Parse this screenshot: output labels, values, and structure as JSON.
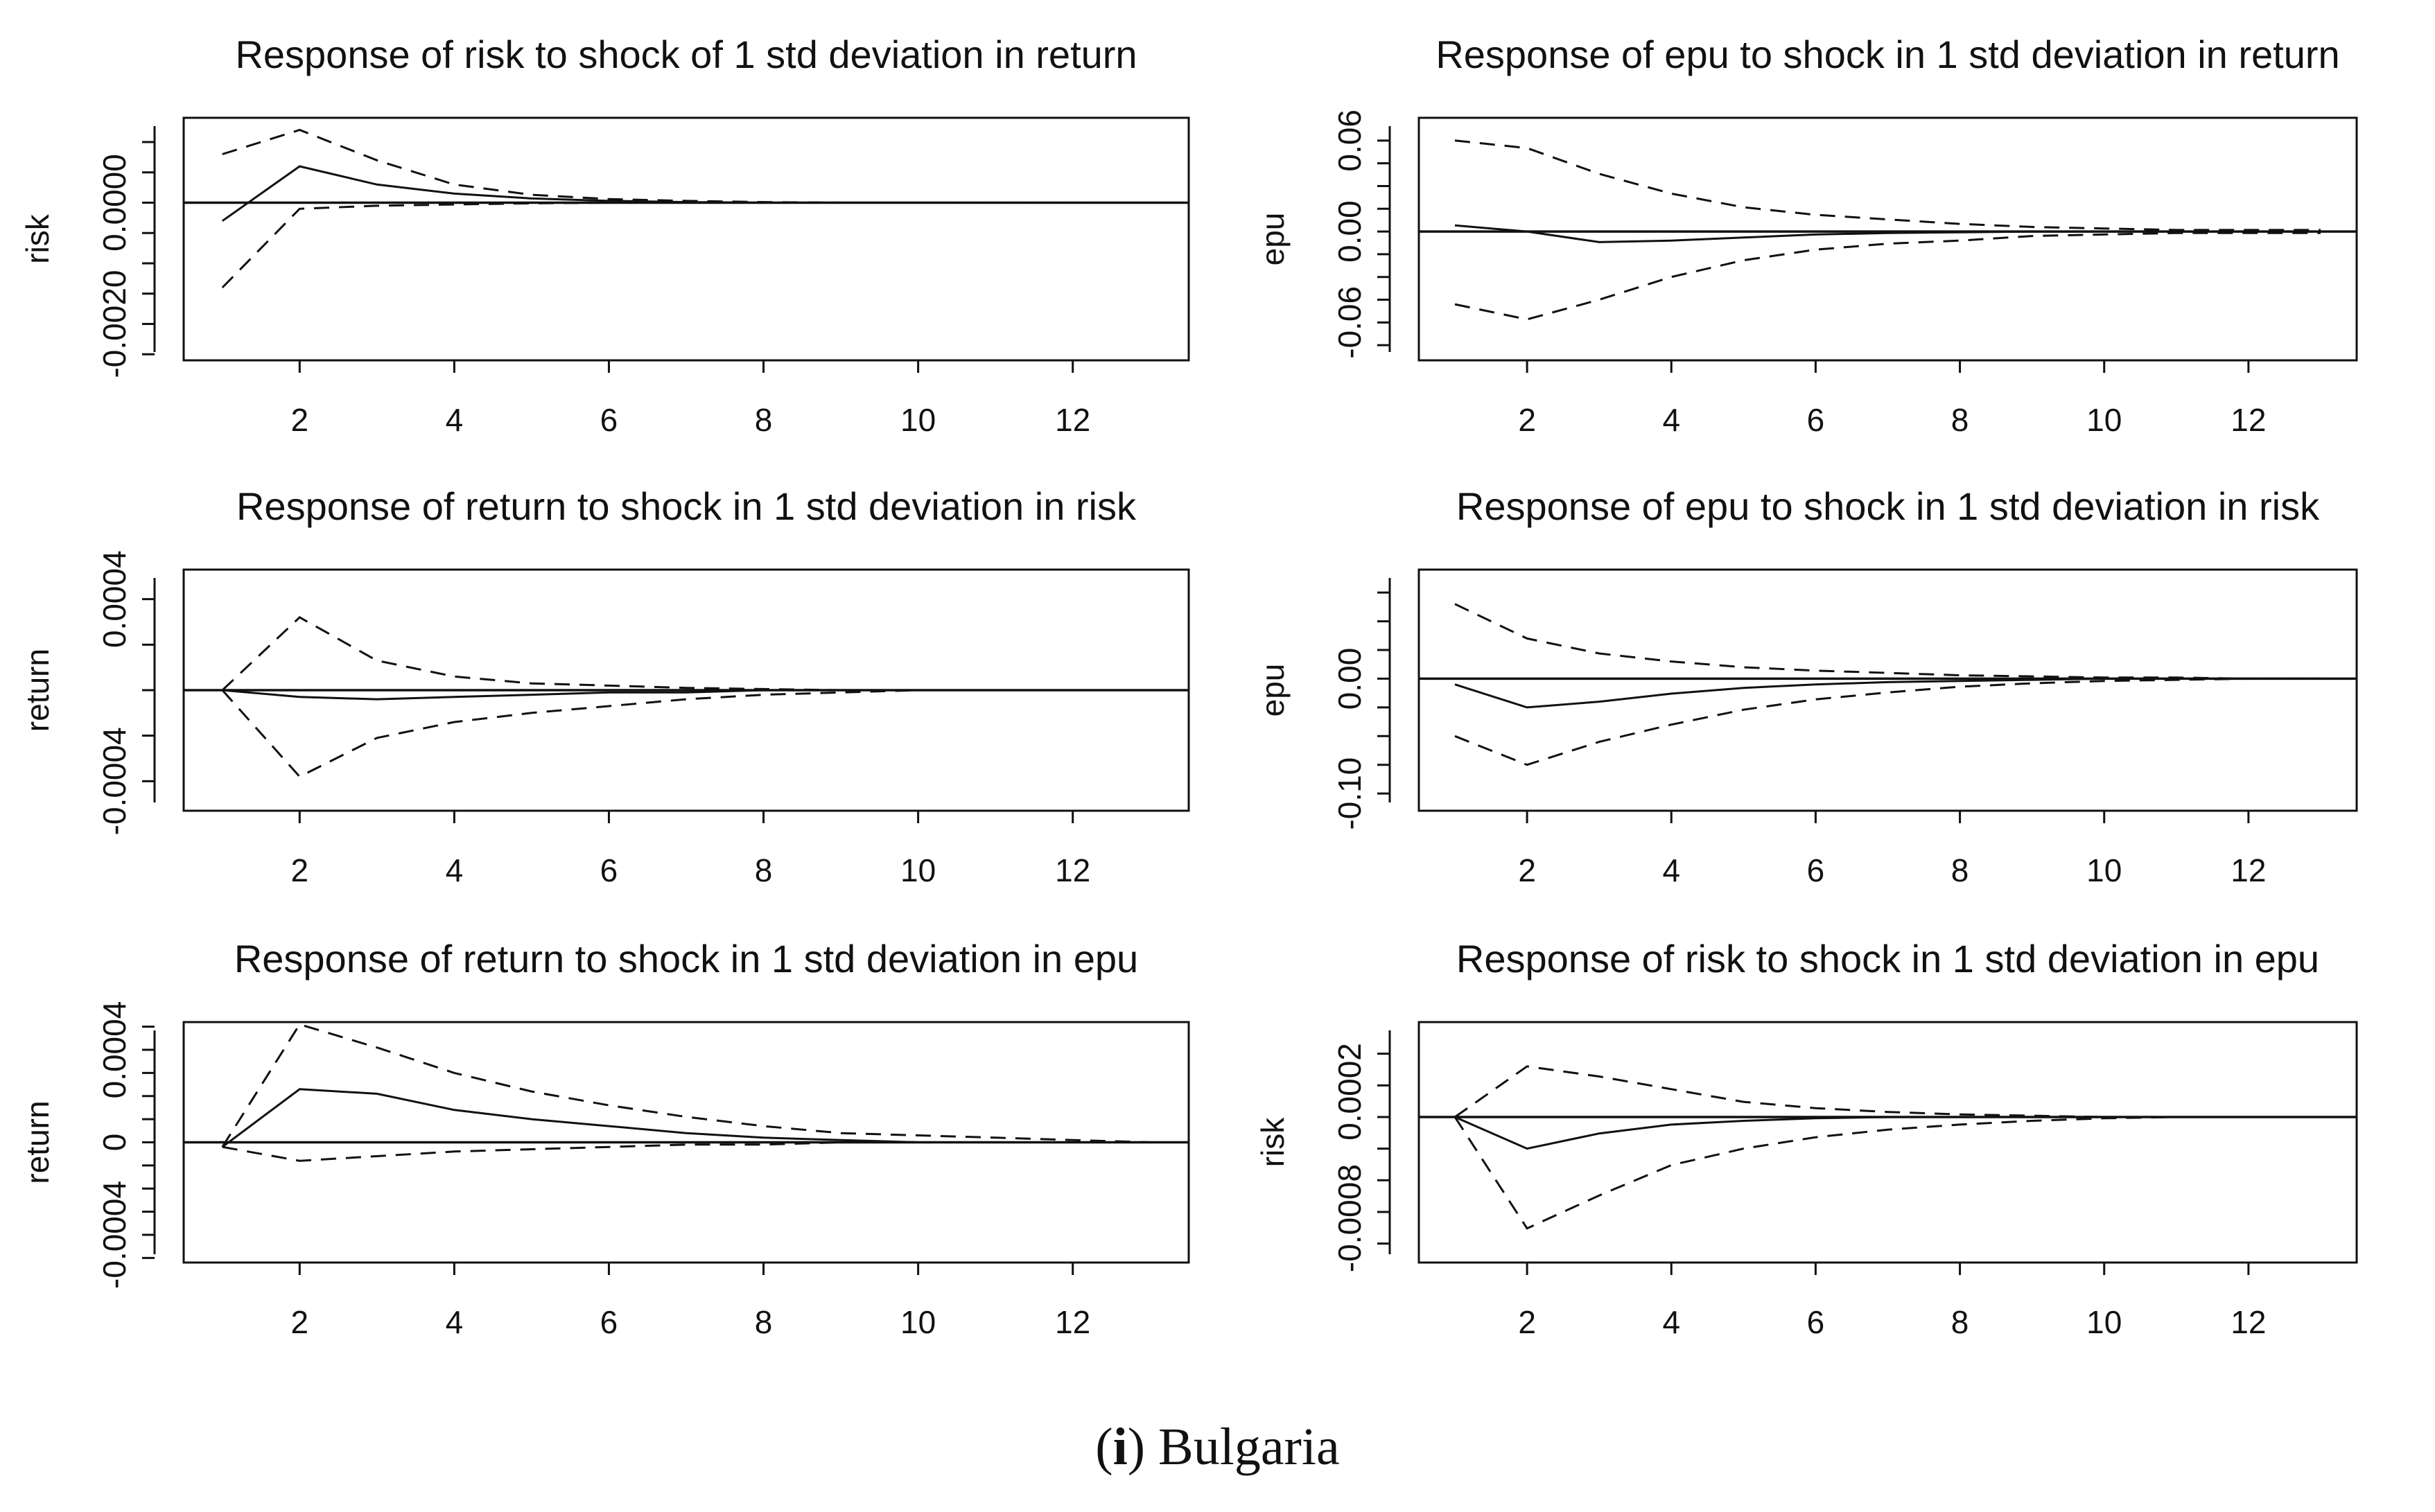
{
  "caption": {
    "label": "i",
    "country": "Bulgaria"
  },
  "chart_data": [
    {
      "type": "line",
      "title": "Response of risk to shock of 1 std deviation in return",
      "ylabel": "risk",
      "xlim": [
        0.5,
        13.5
      ],
      "ylim": [
        -0.0026,
        0.0014
      ],
      "xticks": [
        "2",
        "4",
        "6",
        "8",
        "10",
        "12"
      ],
      "yticks": [
        {
          "v": 0.0,
          "label": "0.0000"
        },
        {
          "v": -0.002,
          "label": "-0.0020"
        }
      ],
      "series": [
        {
          "name": "irf",
          "style": "solid",
          "x": [
            1,
            2,
            3,
            4,
            5,
            6,
            7,
            8,
            9,
            10,
            11,
            12,
            13
          ],
          "values": [
            -0.0003,
            0.0006,
            0.0003,
            0.00015,
            7e-05,
            3e-05,
            1e-05,
            0,
            0,
            0,
            0,
            0,
            0
          ]
        },
        {
          "name": "upper",
          "style": "dashed",
          "x": [
            1,
            2,
            3,
            4,
            5,
            6,
            7,
            8,
            9,
            10,
            11,
            12,
            13
          ],
          "values": [
            0.0008,
            0.0012,
            0.0007,
            0.0003,
            0.00013,
            6e-05,
            3e-05,
            1e-05,
            0,
            0,
            0,
            0,
            0
          ]
        },
        {
          "name": "lower",
          "style": "dashed",
          "x": [
            1,
            2,
            3,
            4,
            5,
            6,
            7,
            8,
            9,
            10,
            11,
            12,
            13
          ],
          "values": [
            -0.0014,
            -0.0001,
            -5e-05,
            -3e-05,
            -1e-05,
            0,
            0,
            0,
            0,
            0,
            0,
            0,
            0
          ]
        }
      ]
    },
    {
      "type": "line",
      "title": "Response of epu to shock in 1 std deviation in return",
      "ylabel": "epu",
      "xlim": [
        0.5,
        13.5
      ],
      "ylim": [
        -0.085,
        0.075
      ],
      "xticks": [
        "2",
        "4",
        "6",
        "8",
        "10",
        "12"
      ],
      "yticks": [
        {
          "v": 0.06,
          "label": "0.06"
        },
        {
          "v": 0.0,
          "label": "0.00"
        },
        {
          "v": -0.06,
          "label": "-0.06"
        }
      ],
      "series": [
        {
          "name": "irf",
          "style": "solid",
          "x": [
            1,
            2,
            3,
            4,
            5,
            6,
            7,
            8,
            9,
            10,
            11,
            12,
            13
          ],
          "values": [
            0.004,
            0.0,
            -0.007,
            -0.006,
            -0.004,
            -0.002,
            -0.001,
            -0.0005,
            0,
            0,
            0,
            0,
            0
          ]
        },
        {
          "name": "upper",
          "style": "dashed",
          "x": [
            1,
            2,
            3,
            4,
            5,
            6,
            7,
            8,
            9,
            10,
            11,
            12,
            13
          ],
          "values": [
            0.06,
            0.055,
            0.038,
            0.025,
            0.016,
            0.011,
            0.008,
            0.005,
            0.003,
            0.002,
            0.001,
            0.001,
            0.001
          ]
        },
        {
          "name": "lower",
          "style": "dashed",
          "x": [
            1,
            2,
            3,
            4,
            5,
            6,
            7,
            8,
            9,
            10,
            11,
            12,
            13
          ],
          "values": [
            -0.048,
            -0.058,
            -0.045,
            -0.03,
            -0.019,
            -0.012,
            -0.008,
            -0.006,
            -0.003,
            -0.002,
            -0.001,
            -0.001,
            -0.001
          ]
        }
      ]
    },
    {
      "type": "line",
      "title": "Response of return to shock in 1 std deviation in risk",
      "ylabel": "return",
      "xlim": [
        0.5,
        13.5
      ],
      "ylim": [
        -0.00053,
        0.00053
      ],
      "xticks": [
        "2",
        "4",
        "6",
        "8",
        "10",
        "12"
      ],
      "yticks": [
        {
          "v": 0.0004,
          "label": "0.0004"
        },
        {
          "v": -0.0004,
          "label": "-0.0004"
        }
      ],
      "series": [
        {
          "name": "irf",
          "style": "solid",
          "x": [
            1,
            2,
            3,
            4,
            5,
            6,
            7,
            8,
            9,
            10,
            11,
            12,
            13
          ],
          "values": [
            0,
            -3e-05,
            -4e-05,
            -3e-05,
            -2e-05,
            -1e-05,
            -1e-05,
            0,
            0,
            0,
            0,
            0,
            0
          ]
        },
        {
          "name": "upper",
          "style": "dashed",
          "x": [
            1,
            2,
            3,
            4,
            5,
            6,
            7,
            8,
            9,
            10,
            11,
            12,
            13
          ],
          "values": [
            0,
            0.00032,
            0.00013,
            6e-05,
            3e-05,
            2e-05,
            1e-05,
            5e-06,
            0,
            0,
            0,
            0,
            0
          ]
        },
        {
          "name": "lower",
          "style": "dashed",
          "x": [
            1,
            2,
            3,
            4,
            5,
            6,
            7,
            8,
            9,
            10,
            11,
            12,
            13
          ],
          "values": [
            0,
            -0.00038,
            -0.00021,
            -0.00014,
            -0.0001,
            -7e-05,
            -4e-05,
            -2e-05,
            -1e-05,
            0,
            0,
            0,
            0
          ]
        }
      ]
    },
    {
      "type": "line",
      "title": "Response of epu to shock in 1 std deviation in risk",
      "ylabel": "epu",
      "xlim": [
        0.5,
        13.5
      ],
      "ylim": [
        -0.115,
        0.095
      ],
      "xticks": [
        "2",
        "4",
        "6",
        "8",
        "10",
        "12"
      ],
      "yticks": [
        {
          "v": 0.0,
          "label": "0.00"
        },
        {
          "v": -0.1,
          "label": "-0.10"
        }
      ],
      "series": [
        {
          "name": "irf",
          "style": "solid",
          "x": [
            1,
            2,
            3,
            4,
            5,
            6,
            7,
            8,
            9,
            10,
            11,
            12,
            13
          ],
          "values": [
            -0.005,
            -0.025,
            -0.02,
            -0.013,
            -0.008,
            -0.005,
            -0.003,
            -0.002,
            -0.001,
            0,
            0,
            0,
            0
          ]
        },
        {
          "name": "upper",
          "style": "dashed",
          "x": [
            1,
            2,
            3,
            4,
            5,
            6,
            7,
            8,
            9,
            10,
            11,
            12,
            13
          ],
          "values": [
            0.065,
            0.035,
            0.022,
            0.015,
            0.01,
            0.007,
            0.005,
            0.003,
            0.002,
            0.001,
            0.001,
            0,
            0
          ]
        },
        {
          "name": "lower",
          "style": "dashed",
          "x": [
            1,
            2,
            3,
            4,
            5,
            6,
            7,
            8,
            9,
            10,
            11,
            12,
            13
          ],
          "values": [
            -0.05,
            -0.075,
            -0.055,
            -0.04,
            -0.027,
            -0.018,
            -0.012,
            -0.007,
            -0.004,
            -0.002,
            -0.001,
            0,
            0
          ]
        }
      ]
    },
    {
      "type": "line",
      "title": "Response of return to shock in 1 std deviation in epu",
      "ylabel": "return",
      "xlim": [
        0.5,
        13.5
      ],
      "ylim": [
        -0.00052,
        0.00052
      ],
      "xticks": [
        "2",
        "4",
        "6",
        "8",
        "10",
        "12"
      ],
      "yticks": [
        {
          "v": 0.0004,
          "label": "0.0004"
        },
        {
          "v": 0.0,
          "label": "0"
        },
        {
          "v": -0.0004,
          "label": "-0.0004"
        }
      ],
      "series": [
        {
          "name": "irf",
          "style": "solid",
          "x": [
            1,
            2,
            3,
            4,
            5,
            6,
            7,
            8,
            9,
            10,
            11,
            12,
            13
          ],
          "values": [
            -2e-05,
            0.00023,
            0.00021,
            0.00014,
            0.0001,
            7e-05,
            4e-05,
            2e-05,
            1e-05,
            0,
            0,
            0,
            0
          ]
        },
        {
          "name": "upper",
          "style": "dashed",
          "x": [
            1,
            2,
            3,
            4,
            5,
            6,
            7,
            8,
            9,
            10,
            11,
            12,
            13
          ],
          "values": [
            -2e-05,
            0.00051,
            0.00041,
            0.0003,
            0.00022,
            0.00016,
            0.00011,
            7e-05,
            4e-05,
            3e-05,
            2e-05,
            1e-05,
            0
          ]
        },
        {
          "name": "lower",
          "style": "dashed",
          "x": [
            1,
            2,
            3,
            4,
            5,
            6,
            7,
            8,
            9,
            10,
            11,
            12,
            13
          ],
          "values": [
            -2e-05,
            -8e-05,
            -6e-05,
            -4e-05,
            -3e-05,
            -2e-05,
            -1e-05,
            -1e-05,
            0,
            0,
            0,
            0,
            0
          ]
        }
      ]
    },
    {
      "type": "line",
      "title": "Response of risk to shock in 1 std deviation in epu",
      "ylabel": "risk",
      "xlim": [
        0.5,
        13.5
      ],
      "ylim": [
        -0.00115,
        0.00075
      ],
      "xticks": [
        "2",
        "4",
        "6",
        "8",
        "10",
        "12"
      ],
      "yticks": [
        {
          "v": 0.0002,
          "label": "0.0002"
        },
        {
          "v": -0.0008,
          "label": "-0.0008"
        }
      ],
      "series": [
        {
          "name": "irf",
          "style": "solid",
          "x": [
            1,
            2,
            3,
            4,
            5,
            6,
            7,
            8,
            9,
            10,
            11,
            12,
            13
          ],
          "values": [
            0,
            -0.00025,
            -0.00013,
            -6e-05,
            -3e-05,
            -1e-05,
            0,
            0,
            0,
            0,
            0,
            0,
            0
          ]
        },
        {
          "name": "upper",
          "style": "dashed",
          "x": [
            1,
            2,
            3,
            4,
            5,
            6,
            7,
            8,
            9,
            10,
            11,
            12,
            13
          ],
          "values": [
            0,
            0.0004,
            0.00032,
            0.00022,
            0.00012,
            7e-05,
            4e-05,
            2e-05,
            1e-05,
            0,
            0,
            0,
            0
          ]
        },
        {
          "name": "lower",
          "style": "dashed",
          "x": [
            1,
            2,
            3,
            4,
            5,
            6,
            7,
            8,
            9,
            10,
            11,
            12,
            13
          ],
          "values": [
            0,
            -0.00088,
            -0.00062,
            -0.00038,
            -0.00025,
            -0.00016,
            -0.0001,
            -6e-05,
            -3e-05,
            -1e-05,
            0,
            0,
            0
          ]
        }
      ]
    }
  ]
}
